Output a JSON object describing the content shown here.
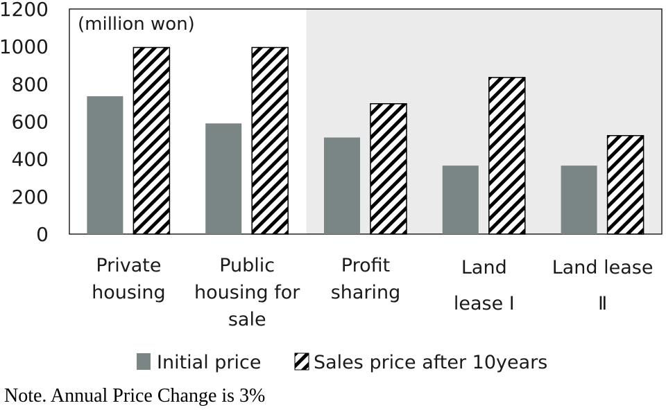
{
  "chart_data": {
    "type": "bar",
    "unit_label": "(million won)",
    "categories": [
      [
        "Private",
        "housing"
      ],
      [
        "Public",
        "housing for",
        "sale"
      ],
      [
        "Profit",
        "sharing"
      ],
      [
        "Land",
        "lease Ⅰ"
      ],
      [
        "Land lease",
        "Ⅱ"
      ]
    ],
    "series": [
      {
        "name": "Initial price",
        "values": [
          735,
          590,
          515,
          365,
          365
        ],
        "color": "#7a8685",
        "pattern": "solid"
      },
      {
        "name": "Sales price after 10years",
        "values": [
          995,
          995,
          695,
          835,
          525
        ],
        "color": "#000000",
        "pattern": "diagonal-hatch"
      }
    ],
    "ylim": [
      0,
      1200
    ],
    "yticks": [
      0,
      200,
      400,
      600,
      800,
      1000,
      1200
    ],
    "shaded_region_from_category": 2,
    "shade_color": "#ebebeb",
    "legend_position": "bottom",
    "title": "",
    "xlabel": "",
    "ylabel": ""
  },
  "note": "Note. Annual Price Change is 3%"
}
